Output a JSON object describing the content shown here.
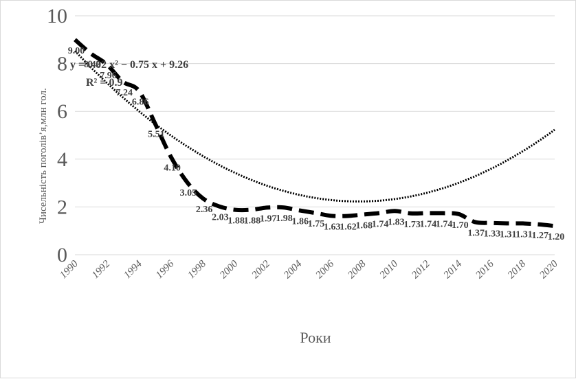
{
  "chart_data": {
    "type": "line",
    "title": "",
    "xlabel": "Роки",
    "ylabel": "Чисельність поголів’я,млн гол.",
    "xlim": [
      1990,
      2020
    ],
    "ylim": [
      0,
      10
    ],
    "y_ticks": [
      "0",
      "2",
      "4",
      "6",
      "8",
      "10"
    ],
    "x_ticks": [
      "1990",
      "1992",
      "1994",
      "1996",
      "1998",
      "2000",
      "2002",
      "2004",
      "2006",
      "2008",
      "2010",
      "2012",
      "2014",
      "2016",
      "2018",
      "2020"
    ],
    "grid": "horizontal",
    "legend": "none",
    "x": [
      1990,
      1991,
      1992,
      1993,
      1994,
      1995,
      1996,
      1997,
      1998,
      1999,
      2000,
      2001,
      2002,
      2003,
      2004,
      2005,
      2006,
      2007,
      2008,
      2009,
      2010,
      2011,
      2012,
      2013,
      2014,
      2015,
      2016,
      2017,
      2018,
      2019,
      2020
    ],
    "series": [
      {
        "style": "dashed",
        "values": [
          9.0,
          8.42,
          7.96,
          7.24,
          6.86,
          5.51,
          4.1,
          3.05,
          2.36,
          2.03,
          1.88,
          1.88,
          1.97,
          1.98,
          1.86,
          1.75,
          1.63,
          1.62,
          1.68,
          1.74,
          1.83,
          1.73,
          1.74,
          1.74,
          1.7,
          1.37,
          1.33,
          1.31,
          1.31,
          1.27,
          1.2
        ],
        "labels": [
          "9.00",
          "8.42",
          "7.96",
          "7.24",
          "6.86",
          "5.51",
          "4.10",
          "3.05",
          "2.36",
          "2.03",
          "1.88",
          "1.88",
          "1.97",
          "1.98",
          "1.86",
          "1.75",
          "1.63",
          "1.62",
          "1.68",
          "1.74",
          "1.83",
          "1.73",
          "1.74",
          "1.74",
          "1.70",
          "1.37",
          "1.33",
          "1.31",
          "1.31",
          "1.27",
          "1.20"
        ]
      },
      {
        "style": "dotted-trend",
        "fit": "polynomial-2",
        "coefficients": [
          0.02,
          -0.75,
          9.26
        ]
      }
    ],
    "annotations": {
      "equation": "y = 0.02 x² − 0.75 x + 9.26",
      "r_squared": "R² = 0.9"
    }
  },
  "colors": {
    "series": "#000000",
    "grid": "#d9d9d9",
    "tick_text": "#595959",
    "label_text": "#404040"
  }
}
